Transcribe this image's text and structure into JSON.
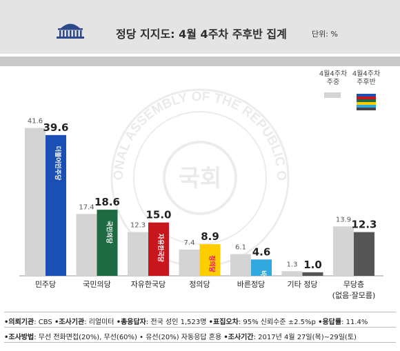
{
  "header": {
    "title": "정당 지지도: 4월 4주차 주후반 집계",
    "unit": "단위: %"
  },
  "watermark": {
    "seal_text": "THE NATIONAL ASSEMBLY OF THE REPUBLIC OF KOREA",
    "center_text": "국회"
  },
  "legend": {
    "prev": "4월4주차\n주중",
    "curr": "4월4주차\n주후반"
  },
  "colors": {
    "prev_bar": "#d4d4d4",
    "minju": "#1a4fb6",
    "gukmin": "#1e6b43",
    "jayu": "#c8161e",
    "jeongui": "#ffcc00",
    "bareun": "#31a8e0",
    "gita": "#555555",
    "mudang": "#555555",
    "header_bg": "#e4e4e4",
    "stripe": "#c9c9c9"
  },
  "chart_data": {
    "type": "bar",
    "title": "정당 지지도: 4월 4주차 주후반 집계",
    "unit": "%",
    "categories": [
      "민주당",
      "국민의당",
      "자유한국당",
      "정의당",
      "바른정당",
      "기타 정당",
      "무당층"
    ],
    "category_sublabels": [
      "",
      "",
      "",
      "",
      "",
      "",
      "(없음·잘모름)"
    ],
    "series": [
      {
        "name": "4월4주차 주중",
        "values": [
          41.6,
          17.4,
          12.3,
          7.4,
          6.1,
          1.3,
          13.9
        ]
      },
      {
        "name": "4월4주차 주후반",
        "values": [
          39.6,
          18.6,
          15.0,
          8.9,
          4.6,
          1.0,
          12.3
        ]
      }
    ],
    "bar_labels": [
      "더불어민주당",
      "국민의당",
      "자유한국당",
      "정의당",
      "바른정당",
      "",
      ""
    ],
    "ylim": [
      0,
      45
    ]
  },
  "footer": {
    "line1": [
      {
        "key": "•의뢰기관",
        "val": ": CBS "
      },
      {
        "key": "•조사기관",
        "val": ": 리얼미터 "
      },
      {
        "key": "•총응답자",
        "val": ": 전국 성인 1,523명 "
      },
      {
        "key": "•표집오차",
        "val": ": 95% 신뢰수준 ±2.5%p "
      },
      {
        "key": "•응답률",
        "val": ": 11.4%"
      }
    ],
    "line2": [
      {
        "key": "•조사방법",
        "val": ": 무선 전화면접(20%), 무선(60%) • 유선(20%) 자동응답 혼용 "
      },
      {
        "key": "•조사기간",
        "val": ": 2017년 4월 27일(목)~29일(토)"
      }
    ]
  }
}
